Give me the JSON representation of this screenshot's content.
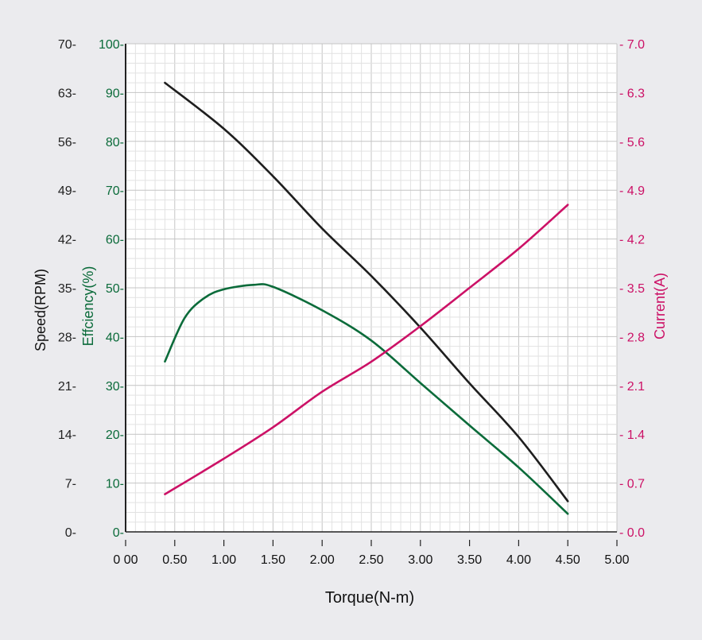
{
  "chart_data": {
    "type": "line",
    "title": "",
    "xlabel": "Torque(N-m)",
    "xlim": [
      0,
      5
    ],
    "x_ticks": [
      "0 00",
      "0.50",
      "1.00",
      "1.50",
      "2.00",
      "2.50",
      "3.00",
      "3.50",
      "4.00",
      "4.50",
      "5.00"
    ],
    "grid": true,
    "axes": [
      {
        "id": "speed",
        "label": "Speed(RPM)",
        "side": "left-outer",
        "ylim": [
          0,
          70
        ],
        "ticks": [
          "0",
          "7",
          "14",
          "21",
          "28",
          "35",
          "42",
          "49",
          "56",
          "63",
          "70"
        ],
        "color": "#222222"
      },
      {
        "id": "eff",
        "label": "Effciency(%)",
        "side": "left-inner",
        "ylim": [
          0,
          100
        ],
        "ticks": [
          "0",
          "10",
          "20",
          "30",
          "40",
          "50",
          "60",
          "70",
          "80",
          "90",
          "100"
        ],
        "color": "#0b6b3a"
      },
      {
        "id": "current",
        "label": "Current(A)",
        "side": "right",
        "ylim": [
          0,
          7
        ],
        "ticks": [
          "0.0",
          "0.7",
          "1.4",
          "2.1",
          "2.8",
          "3.5",
          "4.2",
          "4.9",
          "5.6",
          "6.3",
          "7.0"
        ],
        "tick_prefix": "- ",
        "color": "#cc1166"
      }
    ],
    "series": [
      {
        "name": "Speed",
        "axis": "speed",
        "color": "#1e1e1e",
        "x": [
          0.4,
          1.0,
          1.5,
          2.0,
          2.5,
          3.0,
          3.5,
          4.0,
          4.5
        ],
        "y": [
          64.4,
          57.8,
          51.0,
          43.5,
          36.7,
          29.3,
          21.3,
          13.6,
          4.4
        ]
      },
      {
        "name": "Efficiency",
        "axis": "eff",
        "color": "#0b6b3a",
        "x": [
          0.4,
          0.6,
          0.8,
          1.0,
          1.3,
          1.5,
          2.0,
          2.5,
          3.0,
          3.5,
          4.0,
          4.5
        ],
        "y": [
          34.9,
          43.8,
          47.9,
          49.7,
          50.6,
          50.2,
          45.4,
          39.2,
          30.5,
          21.8,
          13.2,
          3.7
        ]
      },
      {
        "name": "Current",
        "axis": "current",
        "color": "#cc1166",
        "x": [
          0.4,
          1.0,
          1.5,
          2.0,
          2.5,
          3.0,
          3.5,
          4.0,
          4.5
        ],
        "y": [
          0.54,
          1.05,
          1.5,
          2.01,
          2.44,
          2.95,
          3.5,
          4.06,
          4.69
        ]
      }
    ]
  }
}
